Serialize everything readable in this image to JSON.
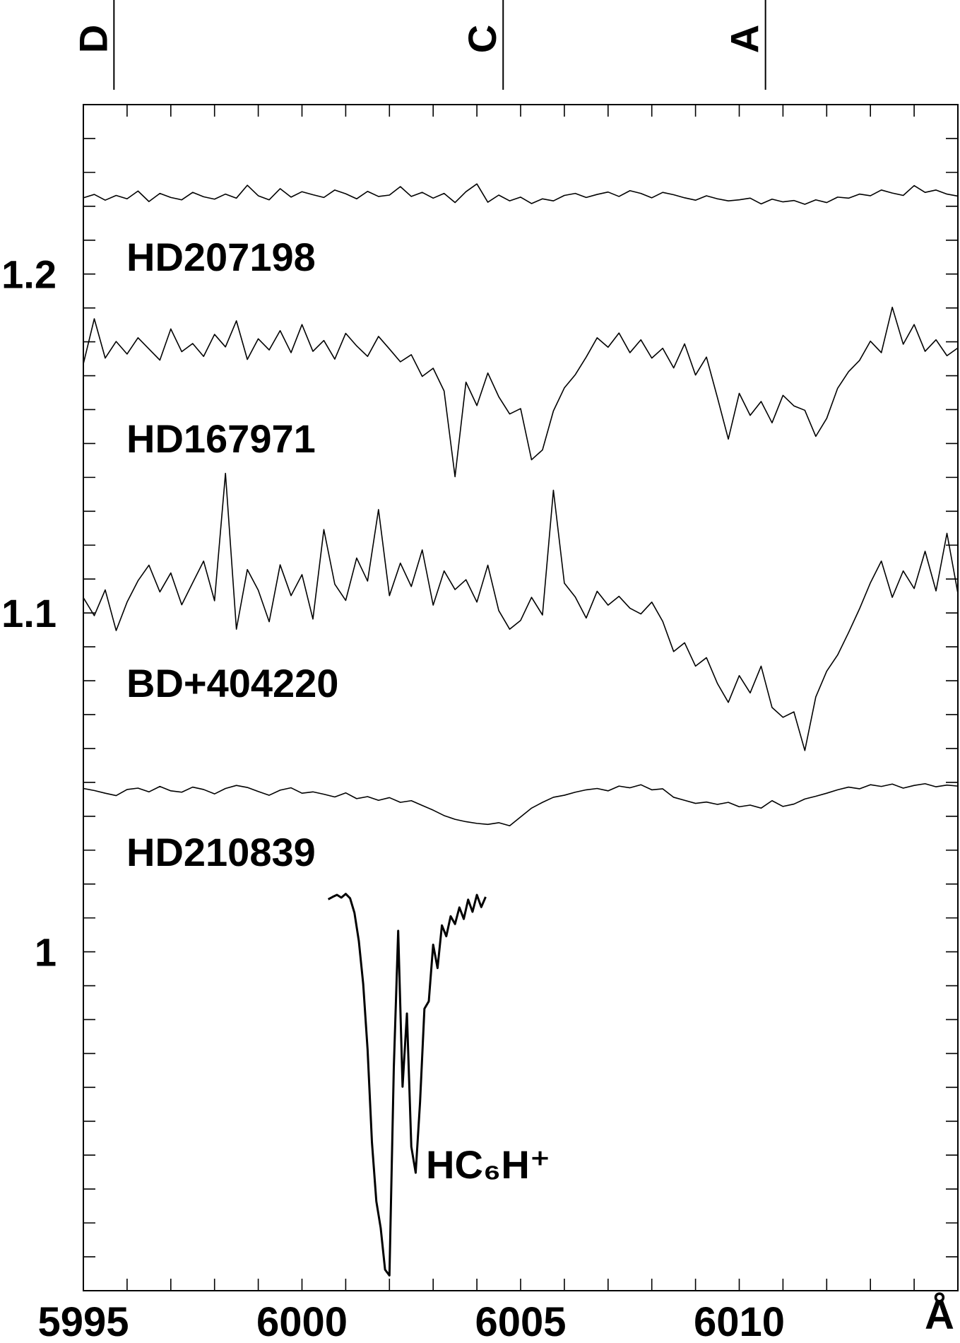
{
  "chart_data": {
    "type": "line",
    "xlim": [
      5995,
      6015
    ],
    "xticks": [
      5995,
      6000,
      6005,
      6010
    ],
    "xminorticks": [
      5996,
      5997,
      5998,
      5999,
      6001,
      6002,
      6003,
      6004,
      6006,
      6007,
      6008,
      6009,
      6011,
      6012,
      6013,
      6014
    ],
    "xlabel": "Å",
    "ylim": [
      0.9,
      1.25
    ],
    "yticks": [
      1,
      1.1,
      1.2
    ],
    "yminorticks": [
      0.91,
      0.92,
      0.93,
      0.94,
      0.95,
      0.96,
      0.97,
      0.98,
      0.99,
      1.01,
      1.02,
      1.03,
      1.04,
      1.05,
      1.06,
      1.07,
      1.08,
      1.09,
      1.11,
      1.12,
      1.13,
      1.14,
      1.15,
      1.16,
      1.17,
      1.18,
      1.19,
      1.21,
      1.22,
      1.23,
      1.24
    ],
    "markers": [
      {
        "label": "D",
        "x": 5995.7
      },
      {
        "label": "C",
        "x": 6004.6
      },
      {
        "label": "A",
        "x": 6010.6
      }
    ],
    "x": [
      5995,
      5995.25,
      5995.5,
      5995.75,
      5996,
      5996.25,
      5996.5,
      5996.75,
      5997,
      5997.25,
      5997.5,
      5997.75,
      5998,
      5998.25,
      5998.5,
      5998.75,
      5999,
      5999.25,
      5999.5,
      5999.75,
      6000,
      6000.25,
      6000.5,
      6000.75,
      6001,
      6001.25,
      6001.5,
      6001.75,
      6002,
      6002.25,
      6002.5,
      6002.75,
      6003,
      6003.25,
      6003.5,
      6003.75,
      6004,
      6004.25,
      6004.5,
      6004.75,
      6005,
      6005.25,
      6005.5,
      6005.75,
      6006,
      6006.25,
      6006.5,
      6006.75,
      6007,
      6007.25,
      6007.5,
      6007.75,
      6008,
      6008.25,
      6008.5,
      6008.75,
      6009,
      6009.25,
      6009.5,
      6009.75,
      6010,
      6010.25,
      6010.5,
      6010.75,
      6011,
      6011.25,
      6011.5,
      6011.75,
      6012,
      6012.25,
      6012.5,
      6012.75,
      6013,
      6013.25,
      6013.5,
      6013.75,
      6014,
      6014.25,
      6014.5,
      6014.75,
      6015
    ],
    "series": [
      {
        "name": "HD207198",
        "color": "#000000",
        "values": [
          1.2225,
          1.2235,
          1.2218,
          1.2232,
          1.2222,
          1.2245,
          1.2214,
          1.2238,
          1.2226,
          1.2219,
          1.2241,
          1.2228,
          1.2221,
          1.2236,
          1.2224,
          1.2262,
          1.2231,
          1.2219,
          1.2252,
          1.2227,
          1.2243,
          1.2234,
          1.2226,
          1.2248,
          1.2237,
          1.2222,
          1.2244,
          1.2229,
          1.2233,
          1.2258,
          1.2229,
          1.2241,
          1.2224,
          1.2238,
          1.2211,
          1.2243,
          1.2266,
          1.2212,
          1.2233,
          1.2216,
          1.2227,
          1.2208,
          1.2222,
          1.2216,
          1.2232,
          1.2238,
          1.2226,
          1.2235,
          1.2242,
          1.2229,
          1.2246,
          1.2238,
          1.2225,
          1.2241,
          1.2234,
          1.2225,
          1.2218,
          1.2231,
          1.2222,
          1.2216,
          1.2219,
          1.2224,
          1.2207,
          1.2221,
          1.2213,
          1.2217,
          1.2206,
          1.2219,
          1.2211,
          1.2227,
          1.2224,
          1.2236,
          1.2231,
          1.2248,
          1.2239,
          1.2232,
          1.2261,
          1.2241,
          1.2248,
          1.2236,
          1.223
        ]
      },
      {
        "name": "HD167971",
        "color": "#000000",
        "values": [
          1.1735,
          1.1868,
          1.1752,
          1.1801,
          1.1764,
          1.1812,
          1.1779,
          1.1746,
          1.1838,
          1.1771,
          1.1795,
          1.1757,
          1.1822,
          1.1785,
          1.1862,
          1.1748,
          1.1809,
          1.1776,
          1.1833,
          1.1768,
          1.1851,
          1.1772,
          1.1804,
          1.1749,
          1.1825,
          1.1788,
          1.1757,
          1.1816,
          1.1779,
          1.1741,
          1.1762,
          1.1698,
          1.1722,
          1.1655,
          1.1402,
          1.1681,
          1.1612,
          1.1708,
          1.1638,
          1.1587,
          1.1603,
          1.1452,
          1.1481,
          1.1596,
          1.1664,
          1.1703,
          1.1755,
          1.1812,
          1.1784,
          1.1826,
          1.1768,
          1.1806,
          1.1752,
          1.1781,
          1.1723,
          1.1794,
          1.1702,
          1.1755,
          1.1636,
          1.1513,
          1.1648,
          1.1583,
          1.1624,
          1.1561,
          1.1642,
          1.1611,
          1.1598,
          1.1521,
          1.1574,
          1.1663,
          1.1712,
          1.1745,
          1.1802,
          1.1768,
          1.1902,
          1.1793,
          1.1851,
          1.1772,
          1.1806,
          1.1759,
          1.1782
        ]
      },
      {
        "name": "BD+404220",
        "color": "#000000",
        "values": [
          1.1045,
          1.0992,
          1.1068,
          1.0948,
          1.1032,
          1.1095,
          1.1141,
          1.1062,
          1.1118,
          1.1024,
          1.1089,
          1.1153,
          1.1036,
          1.1412,
          1.0952,
          1.1128,
          1.1067,
          1.0974,
          1.1142,
          1.1051,
          1.1113,
          1.0982,
          1.1246,
          1.1085,
          1.1037,
          1.1162,
          1.1094,
          1.1305,
          1.1051,
          1.1147,
          1.1078,
          1.1186,
          1.1023,
          1.1124,
          1.1069,
          1.1098,
          1.1032,
          1.1141,
          1.1007,
          1.0952,
          1.0978,
          1.1046,
          1.0994,
          1.1362,
          1.1088,
          1.1047,
          1.0985,
          1.1064,
          1.1023,
          1.1049,
          1.1014,
          1.0997,
          1.1032,
          1.0975,
          1.0886,
          1.0912,
          1.0843,
          1.0868,
          1.0792,
          1.0736,
          1.0815,
          1.0764,
          1.0843,
          1.0721,
          1.0692,
          1.0708,
          1.0594,
          1.0752,
          1.0828,
          1.0876,
          1.0942,
          1.1012,
          1.1089,
          1.1153,
          1.1046,
          1.1124,
          1.1072,
          1.1182,
          1.1065,
          1.1235,
          1.1058
        ]
      },
      {
        "name": "HD210839",
        "color": "#000000",
        "values": [
          1.0482,
          1.0476,
          1.0468,
          1.0461,
          1.0479,
          1.0483,
          1.0472,
          1.0488,
          1.0475,
          1.0471,
          1.0486,
          1.0479,
          1.0466,
          1.0482,
          1.0491,
          1.0485,
          1.0473,
          1.0462,
          1.0477,
          1.0484,
          1.0468,
          1.0472,
          1.0465,
          1.0457,
          1.0469,
          1.0452,
          1.0458,
          1.0447,
          1.0455,
          1.0441,
          1.0446,
          1.0432,
          1.0418,
          1.0402,
          1.0391,
          1.0384,
          1.0379,
          1.0376,
          1.0381,
          1.0372,
          1.0398,
          1.0424,
          1.0441,
          1.0456,
          1.0462,
          1.0471,
          1.0478,
          1.0482,
          1.0475,
          1.0489,
          1.0484,
          1.0493,
          1.0478,
          1.0481,
          1.0456,
          1.0447,
          1.0438,
          1.0442,
          1.0435,
          1.0441,
          1.0428,
          1.0433,
          1.0424,
          1.0446,
          1.0429,
          1.0436,
          1.0451,
          1.0459,
          1.0468,
          1.0478,
          1.0486,
          1.0481,
          1.0493,
          1.0488,
          1.0495,
          1.0483,
          1.0491,
          1.0496,
          1.0487,
          1.0492,
          1.0489
        ]
      },
      {
        "name": "HC₆H⁺",
        "color": "#000000",
        "x": [
          6000.6,
          6000.7,
          6000.8,
          6000.9,
          6001.0,
          6001.1,
          6001.2,
          6001.3,
          6001.4,
          6001.5,
          6001.6,
          6001.7,
          6001.8,
          6001.9,
          6002.0,
          6002.1,
          6002.2,
          6002.3,
          6002.4,
          6002.5,
          6002.6,
          6002.7,
          6002.8,
          6002.9,
          6003.0,
          6003.1,
          6003.2,
          6003.3,
          6003.4,
          6003.5,
          6003.6,
          6003.7,
          6003.8,
          6003.9,
          6004.0,
          6004.1,
          6004.2
        ],
        "values": [
          1.0155,
          1.0162,
          1.0168,
          1.016,
          1.0171,
          1.0158,
          1.0115,
          1.0032,
          0.9905,
          0.9712,
          0.9438,
          0.9264,
          0.9185,
          0.9062,
          0.9045,
          0.9658,
          1.0062,
          0.9602,
          0.9818,
          0.9425,
          0.9348,
          0.9556,
          0.9832,
          0.9854,
          1.0021,
          0.9952,
          1.0078,
          1.0046,
          1.0105,
          1.0082,
          1.0131,
          1.0097,
          1.0154,
          1.0118,
          1.0168,
          1.0132,
          1.0162
        ]
      }
    ]
  }
}
